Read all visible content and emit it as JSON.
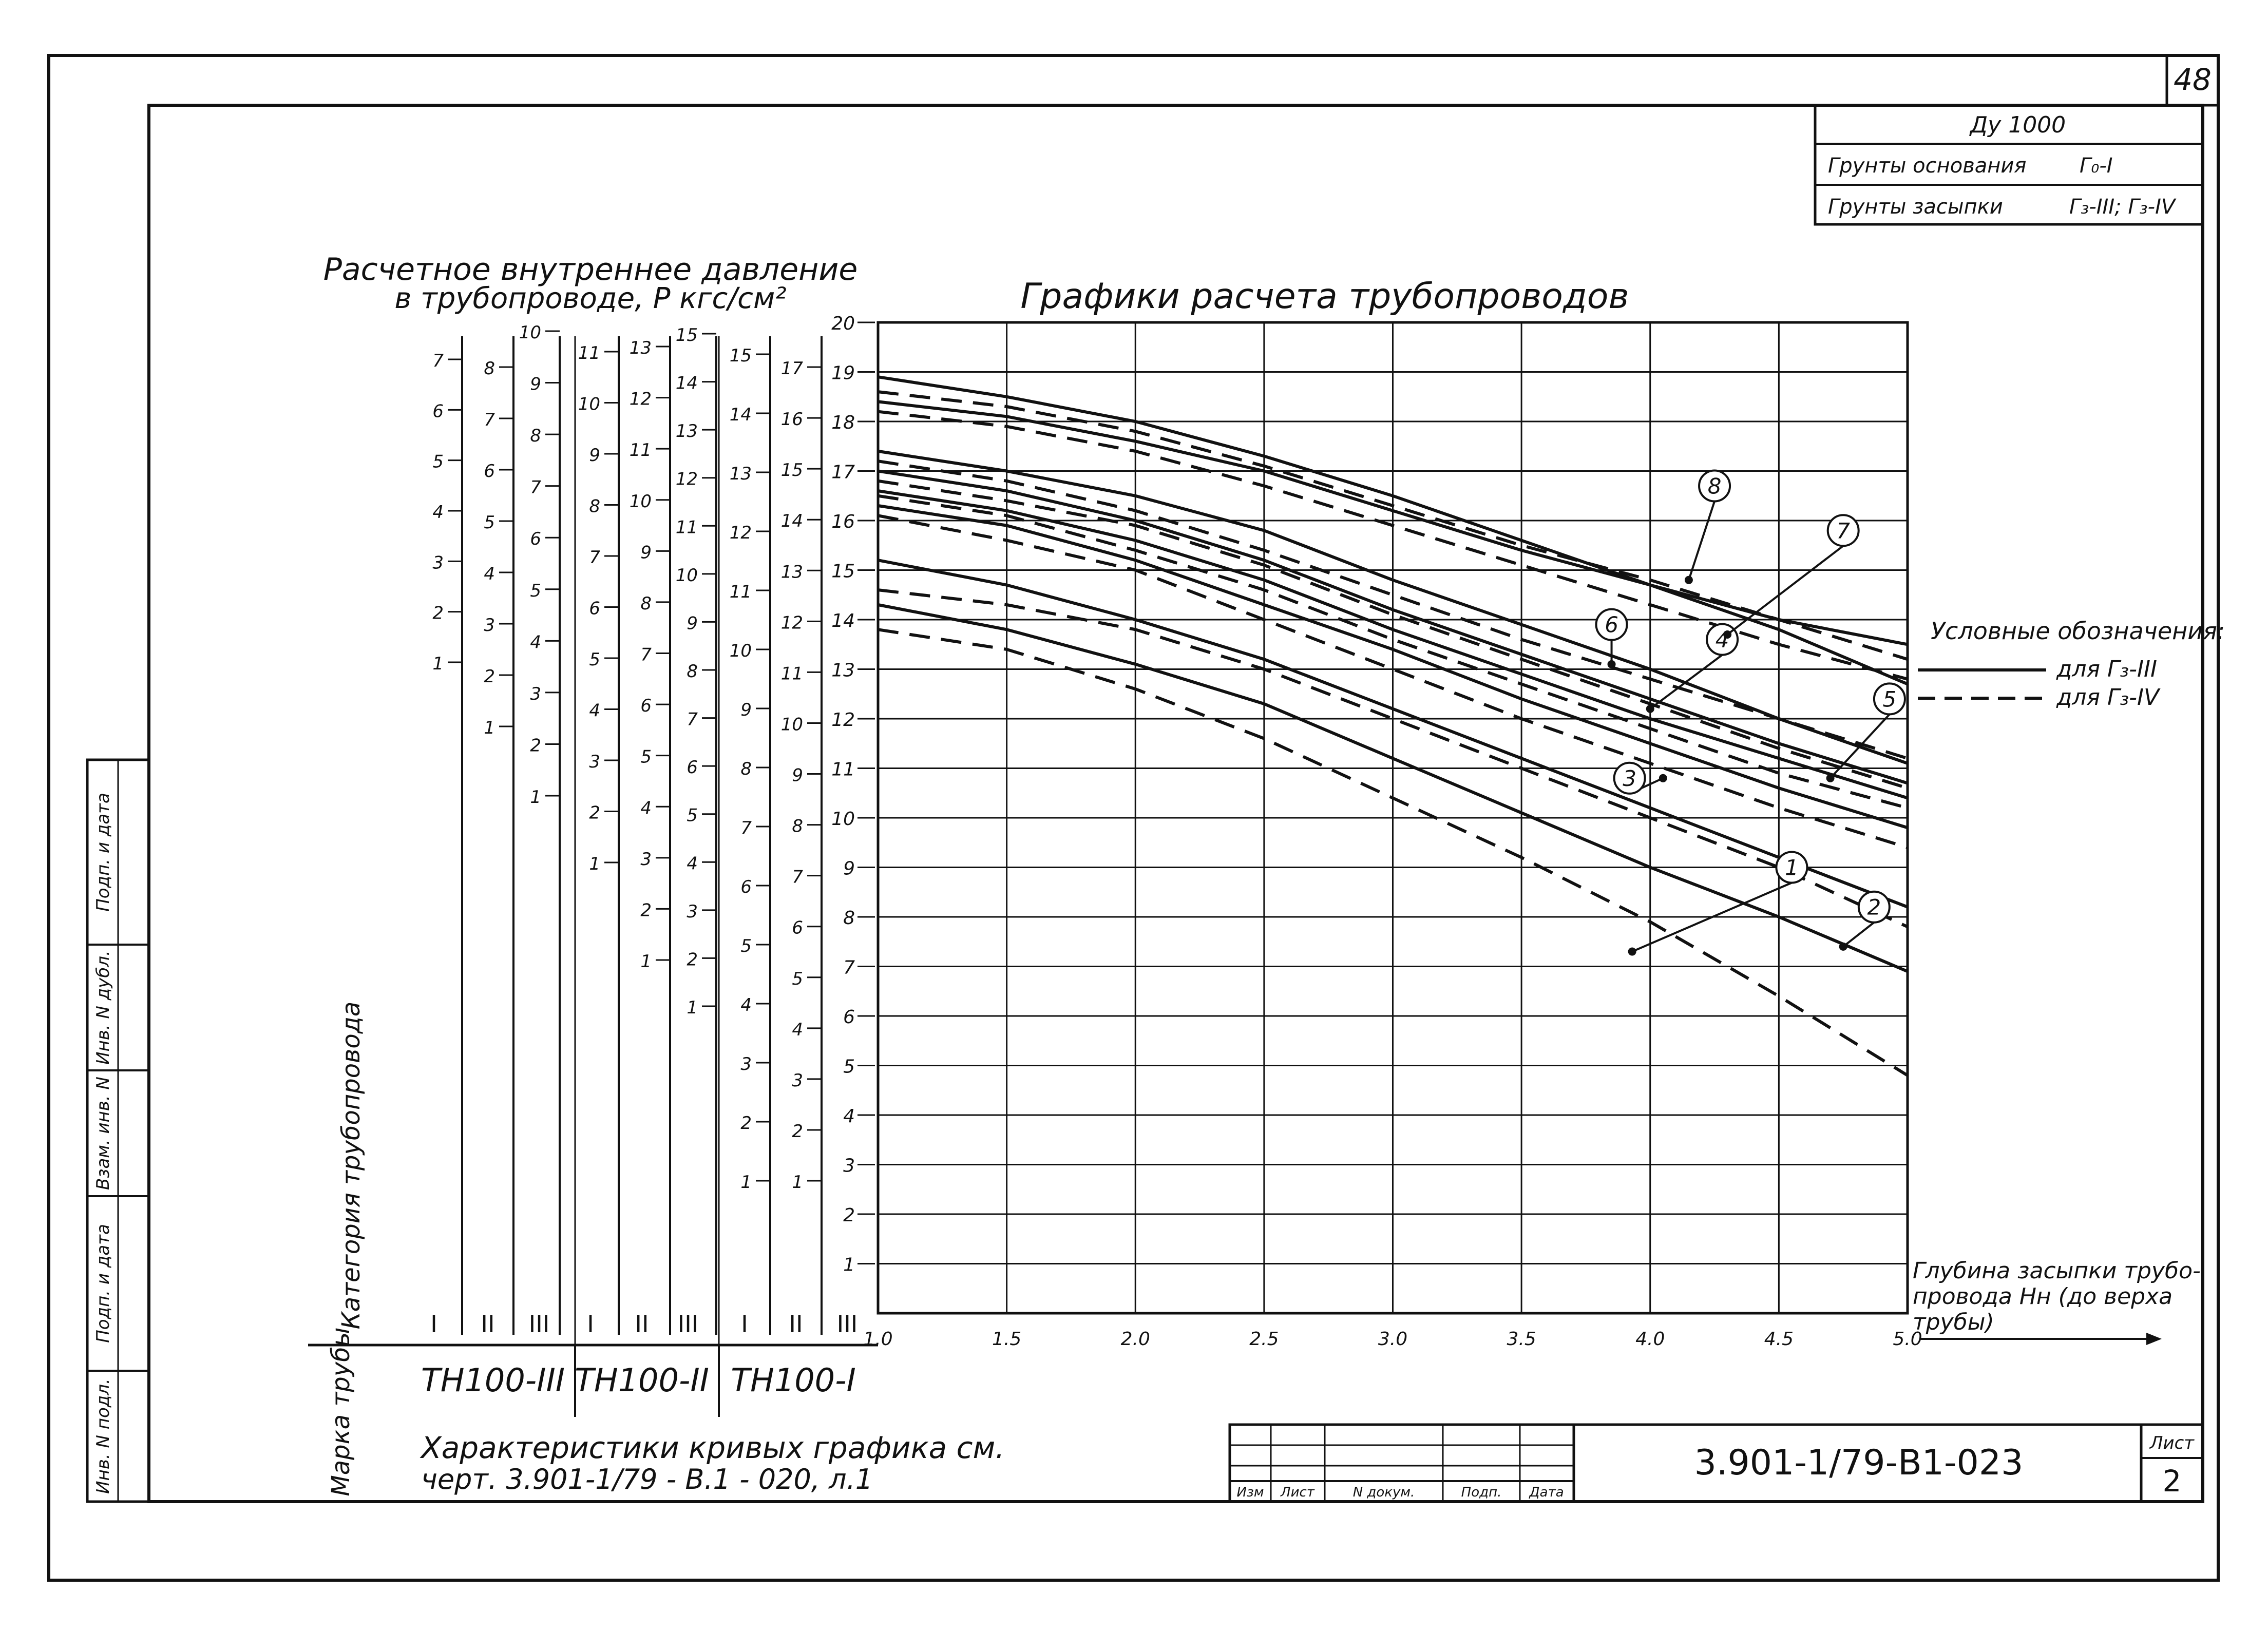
{
  "sheet_number": "48",
  "title_block": {
    "diameter": "Ду 1000",
    "base_soil_label": "Грунты основания",
    "base_soil_value": "Г₀-I",
    "fill_soil_label": "Грунты засыпки",
    "fill_soil_value": "Г₃-III; Г₃-IV"
  },
  "side_stamps": [
    "Подп. и дата",
    "Инв. N дубл.",
    "Взам. инв. N",
    "Подп. и дата",
    "Инв. N подл."
  ],
  "pressure_title_line1": "Расчетное внутреннее давление",
  "pressure_title_line2": "в трубопроводе, P кгс/см²",
  "category_label": "Категория трубопровода",
  "pipe_brand_label": "Марка трубы",
  "pipe_brands": [
    "ТН100-III",
    "ТН100-II",
    "ТН100-I"
  ],
  "category_marks": [
    "I",
    "II",
    "III",
    "I",
    "II",
    "III",
    "I",
    "II",
    "III"
  ],
  "pressure_scales": [
    {
      "ticks": [
        "1",
        "2",
        "3",
        "4",
        "5",
        "6",
        "7"
      ]
    },
    {
      "ticks": [
        "1",
        "2",
        "3",
        "4",
        "5",
        "6",
        "7",
        "8"
      ]
    },
    {
      "ticks": [
        "1",
        "2",
        "3",
        "4",
        "5",
        "6",
        "7",
        "8",
        "9",
        "10"
      ]
    },
    {
      "ticks": [
        "1",
        "2",
        "3",
        "4",
        "5",
        "6",
        "7",
        "8",
        "9",
        "10",
        "11"
      ]
    },
    {
      "ticks": [
        "1",
        "2",
        "3",
        "4",
        "5",
        "6",
        "7",
        "8",
        "9",
        "10",
        "11",
        "12",
        "13"
      ]
    },
    {
      "ticks": [
        "1",
        "2",
        "3",
        "4",
        "5",
        "6",
        "7",
        "8",
        "9",
        "10",
        "11",
        "12",
        "13",
        "14",
        "15"
      ]
    },
    {
      "ticks": [
        "1",
        "2",
        "3",
        "4",
        "5",
        "6",
        "7",
        "8",
        "9",
        "10",
        "11",
        "12",
        "13",
        "14",
        "15"
      ]
    },
    {
      "ticks": [
        "1",
        "2",
        "3",
        "4",
        "5",
        "6",
        "7",
        "8",
        "9",
        "10",
        "11",
        "12",
        "13",
        "14",
        "15",
        "16",
        "17"
      ]
    }
  ],
  "legend": {
    "title": "Условные обозначения:",
    "solid": "для Г₃-III",
    "dashed": "для Г₃-IV"
  },
  "x_axis_label_line1": "Глубина засыпки трубо-",
  "x_axis_label_line2": "провода Нн (до верха",
  "x_axis_label_line3": "трубы)",
  "note_line1": "Характеристики кривых графика см.",
  "note_line2": "черт. 3.901-1/79 - В.1 - 020, л.1",
  "stamp": {
    "doc_code": "3.901-1/79-В1-023",
    "sheet_label": "Лист",
    "sheet_value": "2",
    "columns": [
      "Изм",
      "Лист",
      "N докум.",
      "Подп.",
      "Дата"
    ]
  },
  "chart_data": {
    "type": "line",
    "title": "Графики расчета трубопроводов",
    "xlabel": "Глубина засыпки трубопровода Нн (до верха трубы)",
    "ylabel": "",
    "xlim": [
      1.0,
      5.0
    ],
    "ylim": [
      0,
      20
    ],
    "x_ticks": [
      "1.0",
      "1.5",
      "2.0",
      "2.5",
      "3.0",
      "3.5",
      "4.0",
      "4.5",
      "5.0"
    ],
    "y_ticks": [
      "1",
      "2",
      "3",
      "4",
      "5",
      "6",
      "7",
      "8",
      "9",
      "10",
      "11",
      "12",
      "13",
      "14",
      "15",
      "16",
      "17",
      "18",
      "19",
      "20"
    ],
    "grid": true,
    "curve_labels": [
      "1",
      "2",
      "3",
      "4",
      "5",
      "6",
      "7",
      "8"
    ],
    "series": [
      {
        "style": "solid",
        "x": [
          1.0,
          1.5,
          2.0,
          2.5,
          3.0,
          3.5,
          4.0,
          4.5,
          5.0
        ],
        "y": [
          18.9,
          18.5,
          18.0,
          17.3,
          16.5,
          15.6,
          14.7,
          13.8,
          12.7
        ]
      },
      {
        "style": "dashed",
        "x": [
          1.0,
          1.5,
          2.0,
          2.5,
          3.0,
          3.5,
          4.0,
          4.5,
          5.0
        ],
        "y": [
          18.6,
          18.3,
          17.8,
          17.1,
          16.3,
          15.5,
          14.8,
          14.0,
          13.2
        ]
      },
      {
        "style": "solid",
        "x": [
          1.0,
          1.5,
          2.0,
          2.5,
          3.0,
          3.5,
          4.0,
          4.5,
          5.0
        ],
        "y": [
          18.4,
          18.1,
          17.6,
          17.0,
          16.2,
          15.4,
          14.7,
          14.0,
          13.5
        ]
      },
      {
        "style": "dashed",
        "x": [
          1.0,
          1.5,
          2.0,
          2.5,
          3.0,
          3.5,
          4.0,
          4.5,
          5.0
        ],
        "y": [
          18.2,
          17.9,
          17.4,
          16.7,
          15.9,
          15.1,
          14.3,
          13.5,
          12.8
        ]
      },
      {
        "style": "solid",
        "x": [
          1.0,
          1.5,
          2.0,
          2.5,
          3.0,
          3.5,
          4.0,
          4.5,
          5.0
        ],
        "y": [
          17.4,
          17.0,
          16.5,
          15.8,
          14.8,
          13.9,
          13.0,
          12.0,
          11.1
        ]
      },
      {
        "style": "dashed",
        "x": [
          1.0,
          1.5,
          2.0,
          2.5,
          3.0,
          3.5,
          4.0,
          4.5,
          5.0
        ],
        "y": [
          17.2,
          16.8,
          16.2,
          15.4,
          14.5,
          13.6,
          12.8,
          12.0,
          11.2
        ]
      },
      {
        "style": "solid",
        "x": [
          1.0,
          1.5,
          2.0,
          2.5,
          3.0,
          3.5,
          4.0,
          4.5,
          5.0
        ],
        "y": [
          17.0,
          16.6,
          16.0,
          15.2,
          14.2,
          13.3,
          12.4,
          11.5,
          10.7
        ]
      },
      {
        "style": "dashed",
        "x": [
          1.0,
          1.5,
          2.0,
          2.5,
          3.0,
          3.5,
          4.0,
          4.5,
          5.0
        ],
        "y": [
          16.8,
          16.4,
          15.9,
          15.1,
          14.1,
          13.2,
          12.3,
          11.4,
          10.6
        ]
      },
      {
        "style": "solid",
        "x": [
          1.0,
          1.5,
          2.0,
          2.5,
          3.0,
          3.5,
          4.0,
          4.5,
          5.0
        ],
        "y": [
          16.6,
          16.2,
          15.6,
          14.8,
          13.8,
          12.9,
          12.0,
          11.2,
          10.4
        ]
      },
      {
        "style": "dashed",
        "x": [
          1.0,
          1.5,
          2.0,
          2.5,
          3.0,
          3.5,
          4.0,
          4.5,
          5.0
        ],
        "y": [
          16.5,
          16.1,
          15.4,
          14.6,
          13.6,
          12.7,
          11.8,
          10.9,
          10.2
        ]
      },
      {
        "style": "solid",
        "x": [
          1.0,
          1.5,
          2.0,
          2.5,
          3.0,
          3.5,
          4.0,
          4.5,
          5.0
        ],
        "y": [
          16.3,
          15.9,
          15.2,
          14.3,
          13.4,
          12.4,
          11.5,
          10.6,
          9.8
        ]
      },
      {
        "style": "dashed",
        "x": [
          1.0,
          1.5,
          2.0,
          2.5,
          3.0,
          3.5,
          4.0,
          4.5,
          5.0
        ],
        "y": [
          16.1,
          15.6,
          15.0,
          14.0,
          13.0,
          12.0,
          11.1,
          10.2,
          9.4
        ]
      },
      {
        "style": "solid",
        "x": [
          1.0,
          1.5,
          2.0,
          2.5,
          3.0,
          3.5,
          4.0,
          4.5,
          5.0
        ],
        "y": [
          15.2,
          14.7,
          14.0,
          13.2,
          12.2,
          11.2,
          10.2,
          9.2,
          8.2
        ]
      },
      {
        "style": "dashed",
        "x": [
          1.0,
          1.5,
          2.0,
          2.5,
          3.0,
          3.5,
          4.0,
          4.5,
          5.0
        ],
        "y": [
          14.6,
          14.3,
          13.8,
          13.0,
          12.0,
          11.0,
          10.0,
          9.0,
          7.8
        ]
      },
      {
        "style": "solid",
        "x": [
          1.0,
          1.5,
          2.0,
          2.5,
          3.0,
          3.5,
          4.0,
          4.5,
          5.0
        ],
        "y": [
          14.3,
          13.8,
          13.1,
          12.3,
          11.2,
          10.1,
          9.0,
          8.0,
          6.9
        ]
      },
      {
        "style": "dashed",
        "x": [
          1.0,
          1.5,
          2.0,
          2.5,
          3.0,
          3.5,
          4.0,
          4.5,
          5.0
        ],
        "y": [
          13.8,
          13.4,
          12.6,
          11.6,
          10.4,
          9.2,
          7.9,
          6.4,
          4.8
        ]
      }
    ]
  }
}
